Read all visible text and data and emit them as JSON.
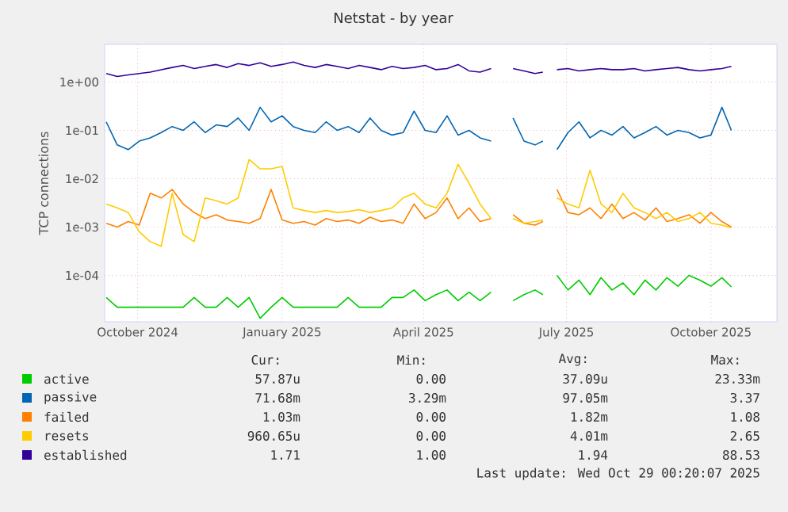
{
  "chart_data": {
    "type": "line",
    "title": "Netstat - by year",
    "ylabel": "TCP connections",
    "log": true,
    "grid": true,
    "legend": "bottom",
    "xlim": [
      "2024-09-24",
      "2025-11-26"
    ],
    "xticks": [
      {
        "value": "2024-10-15",
        "label": "October 2024"
      },
      {
        "value": "2025-01-15",
        "label": "January 2025"
      },
      {
        "value": "2025-04-15",
        "label": "April 2025"
      },
      {
        "value": "2025-07-15",
        "label": "July 2025"
      },
      {
        "value": "2025-10-15",
        "label": "October 2025"
      }
    ],
    "ylim": [
      1.1e-05,
      6
    ],
    "yticks": [
      {
        "value": 0.0001,
        "label": "1e-04"
      },
      {
        "value": 0.001,
        "label": "1e-03"
      },
      {
        "value": 0.01,
        "label": "1e-02"
      },
      {
        "value": 0.1,
        "label": "1e-01"
      },
      {
        "value": 1,
        "label": "1e+00"
      }
    ],
    "x": [
      "2024-09-25",
      "2024-10-02",
      "2024-10-09",
      "2024-10-16",
      "2024-10-23",
      "2024-10-30",
      "2024-11-06",
      "2024-11-13",
      "2024-11-20",
      "2024-11-27",
      "2024-12-04",
      "2024-12-11",
      "2024-12-18",
      "2024-12-25",
      "2025-01-01",
      "2025-01-08",
      "2025-01-15",
      "2025-01-22",
      "2025-01-29",
      "2025-02-05",
      "2025-02-12",
      "2025-02-19",
      "2025-02-26",
      "2025-03-05",
      "2025-03-12",
      "2025-03-19",
      "2025-03-26",
      "2025-04-02",
      "2025-04-09",
      "2025-04-16",
      "2025-04-23",
      "2025-04-30",
      "2025-05-07",
      "2025-05-14",
      "2025-05-21",
      "2025-05-28",
      "2025-06-06",
      "2025-06-11",
      "2025-06-18",
      "2025-06-25",
      "2025-06-30",
      "2025-07-02",
      "2025-07-09",
      "2025-07-16",
      "2025-07-23",
      "2025-07-30",
      "2025-08-06",
      "2025-08-13",
      "2025-08-20",
      "2025-08-27",
      "2025-09-03",
      "2025-09-10",
      "2025-09-17",
      "2025-09-24",
      "2025-10-01",
      "2025-10-08",
      "2025-10-15",
      "2025-10-22",
      "2025-10-28"
    ],
    "series": [
      {
        "name": "active",
        "color": "#00cc00",
        "values": [
          3.5e-05,
          2.2e-05,
          2.2e-05,
          2.2e-05,
          2.2e-05,
          2.2e-05,
          2.2e-05,
          2.2e-05,
          3.5e-05,
          2.2e-05,
          2.2e-05,
          3.5e-05,
          2.2e-05,
          3.5e-05,
          1.3e-05,
          2.2e-05,
          3.5e-05,
          2.2e-05,
          2.2e-05,
          2.2e-05,
          2.2e-05,
          2.2e-05,
          3.5e-05,
          2.2e-05,
          2.2e-05,
          2.2e-05,
          3.5e-05,
          3.5e-05,
          5e-05,
          3e-05,
          4e-05,
          5e-05,
          3e-05,
          4.5e-05,
          3e-05,
          4.5e-05,
          null,
          3e-05,
          4e-05,
          5e-05,
          4e-05,
          null,
          0.0001,
          5e-05,
          8e-05,
          4e-05,
          9e-05,
          5e-05,
          7e-05,
          4e-05,
          8e-05,
          5e-05,
          9e-05,
          6e-05,
          0.0001,
          8e-05,
          6e-05,
          9e-05,
          5.8e-05
        ]
      },
      {
        "name": "passive",
        "color": "#0066b3",
        "values": [
          0.15,
          0.05,
          0.04,
          0.06,
          0.07,
          0.09,
          0.12,
          0.1,
          0.15,
          0.09,
          0.13,
          0.12,
          0.18,
          0.1,
          0.3,
          0.15,
          0.2,
          0.12,
          0.1,
          0.09,
          0.15,
          0.1,
          0.12,
          0.09,
          0.18,
          0.1,
          0.08,
          0.09,
          0.25,
          0.1,
          0.09,
          0.2,
          0.08,
          0.1,
          0.07,
          0.06,
          null,
          0.18,
          0.06,
          0.05,
          0.06,
          null,
          0.04,
          0.09,
          0.15,
          0.07,
          0.1,
          0.08,
          0.12,
          0.07,
          0.09,
          0.12,
          0.08,
          0.1,
          0.09,
          0.07,
          0.08,
          0.3,
          0.1
        ]
      },
      {
        "name": "failed",
        "color": "#ff8000",
        "values": [
          0.0012,
          0.001,
          0.0013,
          0.0011,
          0.005,
          0.004,
          0.006,
          0.003,
          0.002,
          0.0015,
          0.0018,
          0.0014,
          0.0013,
          0.0012,
          0.0015,
          0.006,
          0.0014,
          0.0012,
          0.0013,
          0.0011,
          0.0015,
          0.0013,
          0.0014,
          0.0012,
          0.0016,
          0.0013,
          0.0014,
          0.0012,
          0.003,
          0.0015,
          0.002,
          0.004,
          0.0015,
          0.0025,
          0.0013,
          0.0015,
          null,
          0.0018,
          0.0012,
          0.0011,
          0.0013,
          null,
          0.006,
          0.002,
          0.0018,
          0.0025,
          0.0015,
          0.003,
          0.0015,
          0.002,
          0.0014,
          0.0025,
          0.0013,
          0.0015,
          0.0018,
          0.0012,
          0.002,
          0.0013,
          0.001
        ]
      },
      {
        "name": "resets",
        "color": "#ffcc00",
        "values": [
          0.003,
          0.0025,
          0.002,
          0.0008,
          0.0005,
          0.0004,
          0.005,
          0.0007,
          0.0005,
          0.004,
          0.0035,
          0.003,
          0.004,
          0.025,
          0.016,
          0.016,
          0.018,
          0.0025,
          0.0022,
          0.002,
          0.0022,
          0.002,
          0.0021,
          0.0023,
          0.002,
          0.0022,
          0.0025,
          0.004,
          0.005,
          0.003,
          0.0025,
          0.005,
          0.02,
          0.008,
          0.003,
          0.0015,
          null,
          0.0015,
          0.0012,
          0.0013,
          0.0014,
          null,
          0.004,
          0.003,
          0.0025,
          0.015,
          0.003,
          0.002,
          0.005,
          0.0025,
          0.002,
          0.0015,
          0.002,
          0.0013,
          0.0015,
          0.002,
          0.0012,
          0.0011,
          0.00096
        ]
      },
      {
        "name": "established",
        "color": "#330099",
        "values": [
          1.5,
          1.3,
          1.4,
          1.5,
          1.6,
          1.8,
          2.0,
          2.2,
          1.9,
          2.1,
          2.3,
          2.0,
          2.4,
          2.2,
          2.5,
          2.1,
          2.3,
          2.6,
          2.2,
          2.0,
          2.3,
          2.1,
          1.9,
          2.2,
          2.0,
          1.8,
          2.1,
          1.9,
          2.0,
          2.2,
          1.8,
          1.9,
          2.3,
          1.7,
          1.6,
          1.9,
          null,
          1.9,
          1.7,
          1.5,
          1.6,
          null,
          1.8,
          1.9,
          1.7,
          1.8,
          1.9,
          1.8,
          1.8,
          1.9,
          1.7,
          1.8,
          1.9,
          2.0,
          1.8,
          1.7,
          1.8,
          1.9,
          2.1
        ]
      }
    ],
    "annotations": [
      "Cur:",
      "Min:",
      "Avg:",
      "Max:",
      "57.87u",
      "0.00",
      "37.09u",
      "23.33m",
      "71.68m",
      "3.29m",
      "97.05m",
      "3.37",
      "1.03m",
      "0.00",
      "1.82m",
      "1.08",
      "960.65u",
      "0.00",
      "4.01m",
      "2.65",
      "1.71",
      "1.00",
      "1.94",
      "88.53",
      "Last update: Wed Oct 29 00:20:07 2025"
    ]
  }
}
